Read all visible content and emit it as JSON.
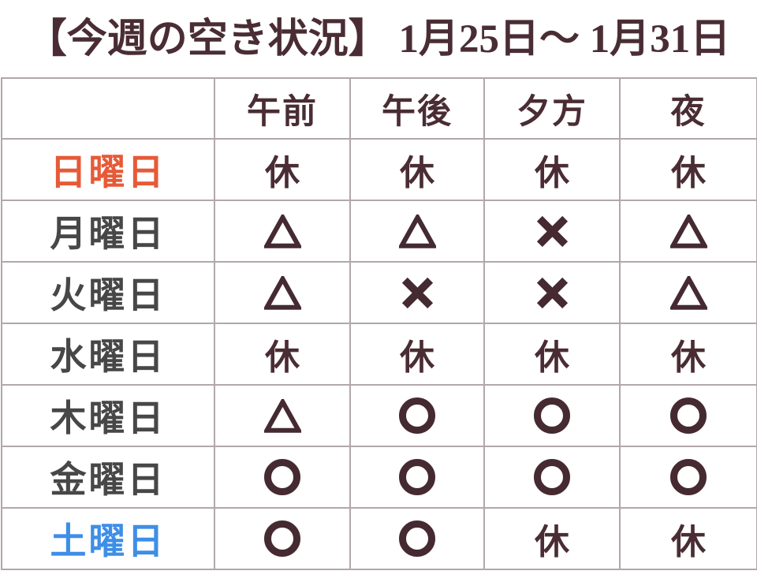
{
  "title": "【今週の空き状況】 1月25日～ 1月31日",
  "legend": {
    "rest": "休"
  },
  "table": {
    "columns": [
      "午前",
      "午後",
      "夕方",
      "夜"
    ],
    "rows": [
      {
        "day": "日曜日",
        "day_type": "sunday",
        "cells": [
          "rest",
          "rest",
          "rest",
          "rest"
        ]
      },
      {
        "day": "月曜日",
        "day_type": "weekday",
        "cells": [
          "triangle",
          "triangle",
          "cross",
          "triangle"
        ]
      },
      {
        "day": "火曜日",
        "day_type": "weekday",
        "cells": [
          "triangle",
          "cross",
          "cross",
          "triangle"
        ]
      },
      {
        "day": "水曜日",
        "day_type": "weekday",
        "cells": [
          "rest",
          "rest",
          "rest",
          "rest"
        ]
      },
      {
        "day": "木曜日",
        "day_type": "weekday",
        "cells": [
          "triangle",
          "circle",
          "circle",
          "circle"
        ]
      },
      {
        "day": "金曜日",
        "day_type": "weekday",
        "cells": [
          "circle",
          "circle",
          "circle",
          "circle"
        ]
      },
      {
        "day": "土曜日",
        "day_type": "saturday",
        "cells": [
          "circle",
          "circle",
          "rest",
          "rest"
        ]
      }
    ]
  },
  "colors": {
    "title_maroon": "#4a2d34",
    "symbol_maroon": "#452a31",
    "weekday_gray": "#474747",
    "sunday_orange": "#e65a37",
    "saturday_blue": "#3e8ee6",
    "grid_border": "#b1a7ac",
    "rest_cell_bg": "#e9e7e7"
  }
}
